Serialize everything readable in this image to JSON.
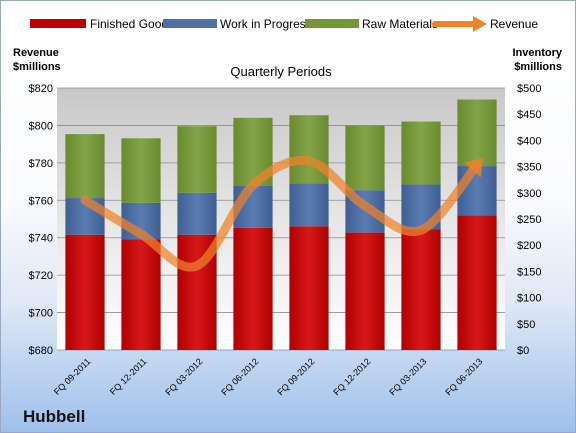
{
  "chart_data": {
    "type": "bar",
    "stacked": true,
    "title": "Quarterly Periods",
    "brand": "Hubbell",
    "categories": [
      "FQ 09-2011",
      "FQ 12-2011",
      "FQ 03-2012",
      "FQ 06-2012",
      "FQ 09-2012",
      "FQ 12-2012",
      "FQ 03-2013",
      "FQ 06-2013"
    ],
    "left_axis": {
      "label_line1": "Revenue",
      "label_line2": "$millions",
      "min": 680,
      "max": 820,
      "step": 20,
      "ticks": [
        "$680",
        "$700",
        "$720",
        "$740",
        "$760",
        "$780",
        "$800",
        "$820"
      ]
    },
    "right_axis": {
      "label_line1": "Inventory",
      "label_line2": "$millions",
      "min": 0,
      "max": 500,
      "step": 50,
      "ticks": [
        "$0",
        "$50",
        "$100",
        "$150",
        "$200",
        "$250",
        "$300",
        "$350",
        "$400",
        "$450",
        "$500"
      ]
    },
    "series": [
      {
        "name": "Finished Goods",
        "axis": "right",
        "color": "#c00000",
        "values": [
          220,
          211,
          220,
          233,
          236,
          224,
          230,
          257
        ]
      },
      {
        "name": "Work in Progress",
        "axis": "right",
        "color": "#4f71a6",
        "values": [
          70,
          70,
          80,
          80,
          82,
          81,
          86,
          94
        ]
      },
      {
        "name": "Raw Materials",
        "axis": "right",
        "color": "#76963a",
        "values": [
          122,
          123,
          127,
          130,
          130,
          123,
          120,
          127
        ]
      }
    ],
    "line_series": {
      "name": "Revenue",
      "axis": "left",
      "color": "#f0822a",
      "values": [
        760,
        742,
        725,
        768,
        781,
        757,
        744,
        779
      ]
    },
    "grid": true,
    "legend": "top"
  }
}
